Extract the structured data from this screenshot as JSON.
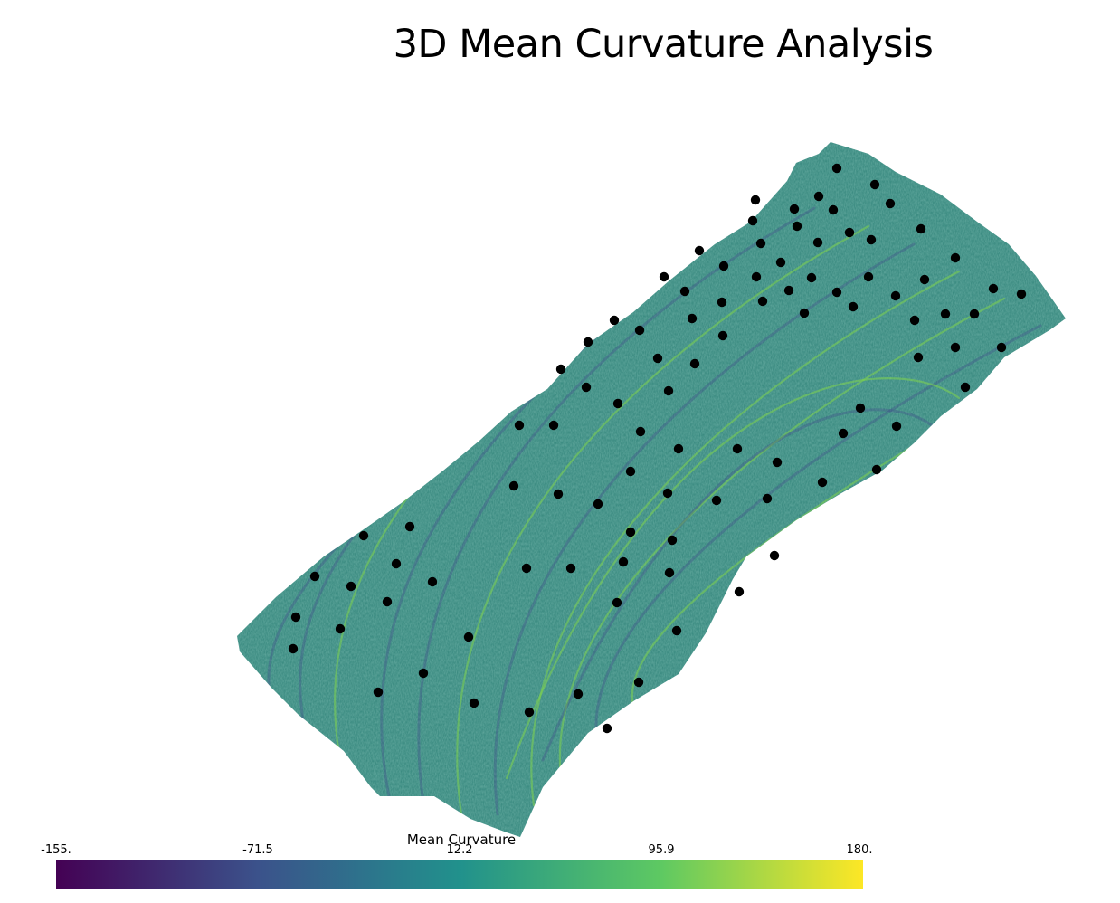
{
  "title": "3D Mean Curvature Analysis",
  "colorbar": {
    "title": "Mean Curvature",
    "ticks": [
      "-155.",
      "-71.5",
      "12.2",
      "95.9",
      "180."
    ],
    "colormap": "viridis",
    "colors": [
      "#440154",
      "#3b528b",
      "#21918c",
      "#5ec962",
      "#fde725"
    ]
  },
  "surface": {
    "base_color": "#3c8c82",
    "ridge_color": "#7fd34e",
    "valley_color": "#3e4a89",
    "marker_color": "#000000"
  }
}
